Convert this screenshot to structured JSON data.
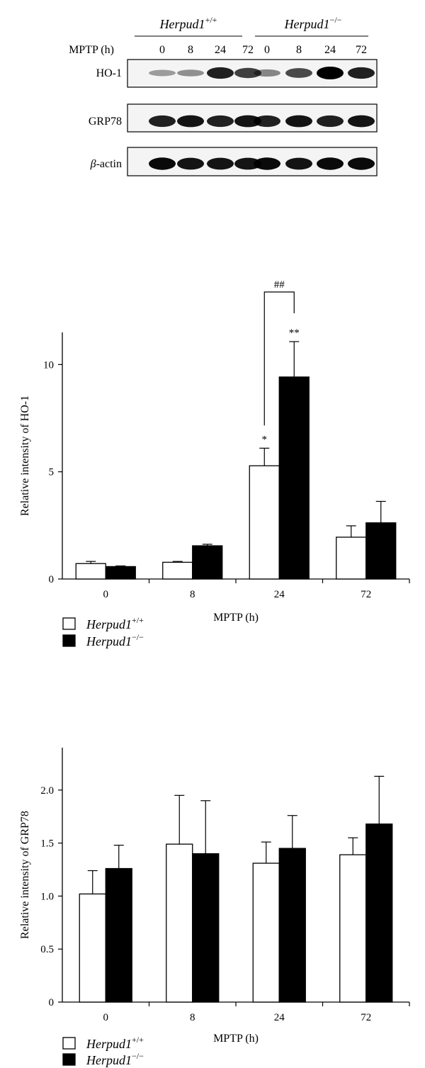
{
  "blot": {
    "group_labels": [
      {
        "base": "Herpud",
        "num": "1",
        "sup": "+/+"
      },
      {
        "base": "Herpud",
        "num": "1",
        "sup": "−/−"
      }
    ],
    "row_header": "MPTP (h)",
    "time_points": [
      "0",
      "8",
      "24",
      "72",
      "0",
      "8",
      "24",
      "72"
    ],
    "bands": [
      {
        "label_prefix": "",
        "label": "HO-1",
        "intensity": [
          0.25,
          0.3,
          0.85,
          0.7,
          0.35,
          0.65,
          1.0,
          0.85
        ]
      },
      {
        "label_prefix": "",
        "label": "GRP78",
        "intensity": [
          0.85,
          0.9,
          0.85,
          0.9,
          0.85,
          0.9,
          0.85,
          0.9
        ]
      },
      {
        "label_prefix": "β",
        "label": "-actin",
        "intensity": [
          0.95,
          0.9,
          0.9,
          0.9,
          0.95,
          0.9,
          0.95,
          0.95
        ]
      }
    ]
  },
  "chart_data": [
    {
      "type": "bar",
      "categories": [
        "0",
        "8",
        "24",
        "72"
      ],
      "xlabel": "MPTP (h)",
      "ylabel": "Relative intensity of HO-1",
      "ylim": [
        0,
        11.5
      ],
      "yticks": [
        "0",
        "5",
        "10"
      ],
      "ytick_values": [
        0,
        5,
        10
      ],
      "series": [
        {
          "key": "wt",
          "fill": "#ffffff",
          "values": [
            0.72,
            0.78,
            5.28,
            1.95
          ],
          "errors": [
            0.1,
            0.04,
            0.82,
            0.53
          ]
        },
        {
          "key": "ko",
          "fill": "#000000",
          "values": [
            0.58,
            1.55,
            9.42,
            2.62
          ],
          "errors": [
            0.03,
            0.07,
            1.65,
            1.0
          ]
        }
      ],
      "annotations": [
        {
          "text": "*",
          "category": 2,
          "series": 0
        },
        {
          "text": "**",
          "category": 2,
          "series": 1
        }
      ],
      "bracket": {
        "text": "##",
        "category": 2
      },
      "legend": {
        "position": "bottom-left",
        "entries": [
          {
            "fill": "#ffffff",
            "base": "Herpud",
            "num": "1",
            "sup": "+/+"
          },
          {
            "fill": "#000000",
            "base": "Herpud",
            "num": "1",
            "sup": "−/−"
          }
        ]
      }
    },
    {
      "type": "bar",
      "categories": [
        "0",
        "8",
        "24",
        "72"
      ],
      "xlabel": "MPTP (h)",
      "ylabel": "Relative intensity of GRP78",
      "ylim": [
        0,
        2.4
      ],
      "yticks": [
        "0",
        "0.5",
        "1.0",
        "1.5",
        "2.0"
      ],
      "ytick_values": [
        0,
        0.5,
        1.0,
        1.5,
        2.0
      ],
      "series": [
        {
          "key": "wt",
          "fill": "#ffffff",
          "values": [
            1.02,
            1.49,
            1.31,
            1.39
          ],
          "errors": [
            0.22,
            0.46,
            0.2,
            0.16
          ]
        },
        {
          "key": "ko",
          "fill": "#000000",
          "values": [
            1.26,
            1.4,
            1.45,
            1.68
          ],
          "errors": [
            0.22,
            0.5,
            0.31,
            0.45
          ]
        }
      ],
      "annotations": [],
      "legend": {
        "position": "bottom-left",
        "entries": [
          {
            "fill": "#ffffff",
            "base": "Herpud",
            "num": "1",
            "sup": "+/+"
          },
          {
            "fill": "#000000",
            "base": "Herpud",
            "num": "1",
            "sup": "−/−"
          }
        ]
      }
    }
  ]
}
